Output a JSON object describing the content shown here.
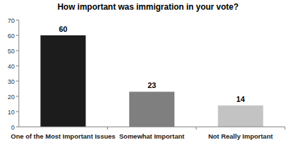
{
  "chart_data": {
    "type": "bar",
    "title": "How important was immigration in your vote?",
    "categories": [
      "One of the Most Important Issues",
      "Somewhat Important",
      "Not Really Important"
    ],
    "values": [
      60,
      23,
      14
    ],
    "colors": [
      "#1c1c1c",
      "#7f7f7f",
      "#c3c3c3"
    ],
    "ylim": [
      0,
      70
    ],
    "yticks": [
      0,
      10,
      20,
      30,
      40,
      50,
      60,
      70
    ],
    "grid": false,
    "data_labels": true
  }
}
